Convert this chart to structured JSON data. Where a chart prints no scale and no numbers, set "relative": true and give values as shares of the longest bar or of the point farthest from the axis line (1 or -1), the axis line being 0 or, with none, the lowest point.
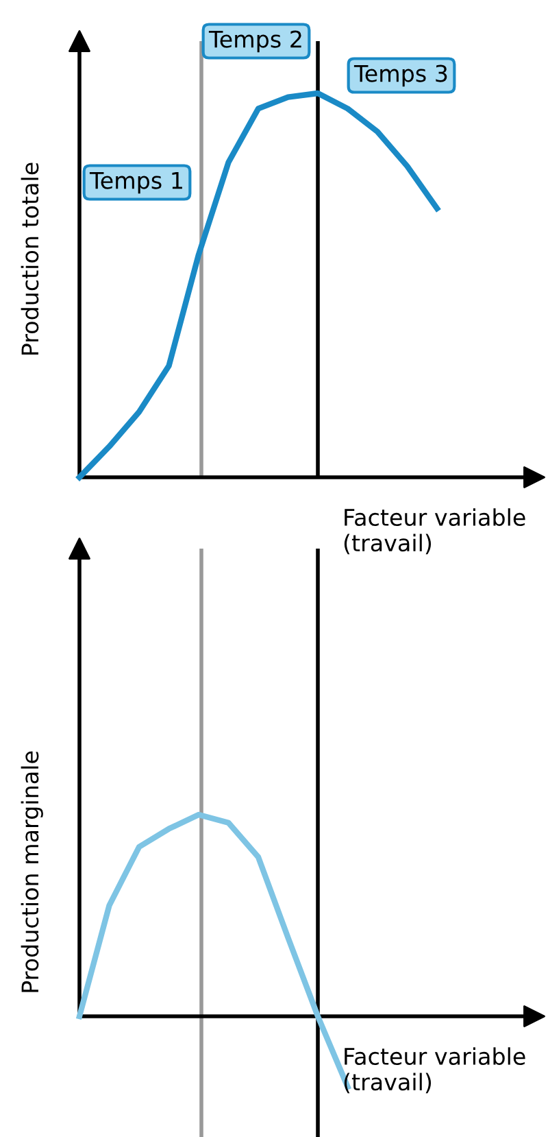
{
  "chart_data": [
    {
      "type": "line",
      "relative": true,
      "ylabel": "Production totale",
      "xlabel": "Facteur variable\n(travail)",
      "categories": [
        null,
        null,
        null,
        null,
        null,
        null,
        null,
        null,
        null,
        null,
        null,
        null,
        null
      ],
      "series": [
        {
          "color": "#1a8ac6",
          "values": [
            0,
            0.08,
            0.17,
            0.29,
            0.58,
            0.82,
            0.96,
            0.99,
            1,
            0.96,
            0.9,
            0.81,
            0.7
          ]
        }
      ],
      "annotations": [
        "Temps 1",
        "Temps 2",
        "Temps 3"
      ],
      "grid": false,
      "legend": false,
      "marker": "none",
      "line_style": "solid"
    },
    {
      "type": "line",
      "relative": true,
      "ylabel": "Production marginale",
      "xlabel": "Facteur variable\n(travail)",
      "categories": [
        null,
        null,
        null,
        null,
        null,
        null,
        null,
        null,
        null,
        null,
        null,
        null,
        null
      ],
      "series": [
        {
          "color": "#7ec4e4",
          "values": [
            0,
            0.55,
            0.84,
            0.93,
            1,
            0.96,
            0.79,
            0.39,
            0,
            -0.35,
            null,
            null,
            null
          ]
        }
      ],
      "grid": false,
      "legend": false,
      "marker": "none",
      "line_style": "solid"
    }
  ]
}
